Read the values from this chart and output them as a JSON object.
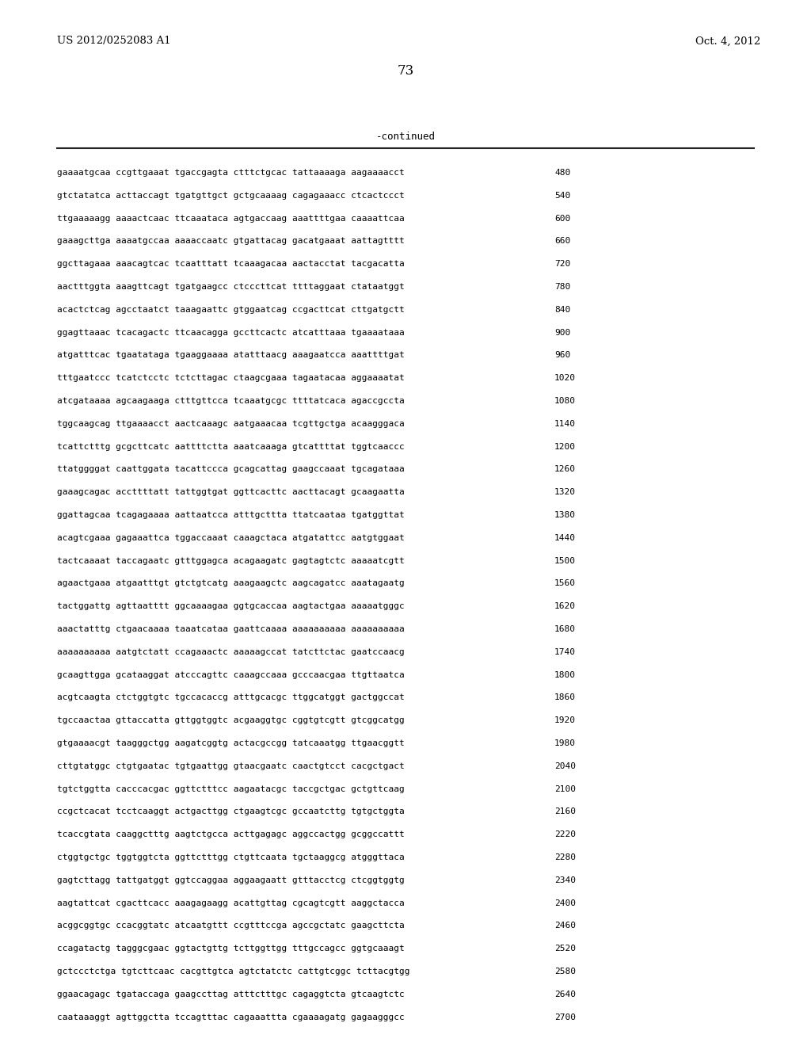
{
  "header_left": "US 2012/0252083 A1",
  "header_right": "Oct. 4, 2012",
  "page_number": "73",
  "continued_label": "-continued",
  "background_color": "#ffffff",
  "text_color": "#000000",
  "seq_font_size": 8.0,
  "header_font_size": 9.5,
  "page_num_font_size": 12,
  "continued_font_size": 9.0,
  "sequence_lines": [
    [
      "gaaaatgcaa ccgttgaaat tgaccgagta ctttctgcac tattaaaaga aagaaaacct",
      "480"
    ],
    [
      "gtctatatca acttaccagt tgatgttgct gctgcaaaag cagagaaacc ctcactccct",
      "540"
    ],
    [
      "ttgaaaaagg aaaactcaac ttcaaataca agtgaccaag aaattttgaa caaaattcaa",
      "600"
    ],
    [
      "gaaagcttga aaaatgccaa aaaaccaatc gtgattacag gacatgaaat aattagtttt",
      "660"
    ],
    [
      "ggcttagaaa aaacagtcac tcaatttatt tcaaagacaa aactacctat tacgacatta",
      "720"
    ],
    [
      "aactttggta aaagttcagt tgatgaagcc ctcccttcat ttttaggaat ctataatggt",
      "780"
    ],
    [
      "acactctcag agcctaatct taaagaattc gtggaatcag ccgacttcat cttgatgctt",
      "840"
    ],
    [
      "ggagttaaac tcacagactc ttcaacagga gccttcactc atcatttaaa tgaaaataaa",
      "900"
    ],
    [
      "atgatttcac tgaatataga tgaaggaaaa atatttaacg aaagaatcca aaattttgat",
      "960"
    ],
    [
      "tttgaatccc tcatctcctc tctcttagac ctaagcgaaa tagaatacaa aggaaaatat",
      "1020"
    ],
    [
      "atcgataaaa agcaagaaga ctttgttcca tcaaatgcgc ttttatcaca agaccgccta",
      "1080"
    ],
    [
      "tggcaagcag ttgaaaacct aactcaaagc aatgaaacaa tcgttgctga acaagggaca",
      "1140"
    ],
    [
      "tcattctttg gcgcttcatc aattttctta aaatcaaaga gtcattttat tggtcaaccc",
      "1200"
    ],
    [
      "ttatggggat caattggata tacattccca gcagcattag gaagccaaat tgcagataaa",
      "1260"
    ],
    [
      "gaaagcagac accttttatt tattggtgat ggttcacttc aacttacagt gcaagaatta",
      "1320"
    ],
    [
      "ggattagcaa tcagagaaaa aattaatcca atttgcttta ttatcaataa tgatggttat",
      "1380"
    ],
    [
      "acagtcgaaa gagaaattca tggaccaaat caaagctaca atgatattcc aatgtggaat",
      "1440"
    ],
    [
      "tactcaaaat taccagaatc gtttggagca acagaagatc gagtagtctc aaaaatcgtt",
      "1500"
    ],
    [
      "agaactgaaa atgaatttgt gtctgtcatg aaagaagctc aagcagatcc aaatagaatg",
      "1560"
    ],
    [
      "tactggattg agttaatttt ggcaaaagaa ggtgcaccaa aagtactgaa aaaaatgggc",
      "1620"
    ],
    [
      "aaactatttg ctgaacaaaa taaatcataa gaattcaaaa aaaaaaaaaa aaaaaaaaaa",
      "1680"
    ],
    [
      "aaaaaaaaaa aatgtctatt ccagaaactc aaaaagccat tatcttctac gaatccaacg",
      "1740"
    ],
    [
      "gcaagttgga gcataaggat atcccagttc caaagccaaa gcccaacgaa ttgttaatca",
      "1800"
    ],
    [
      "acgtcaagta ctctggtgtc tgccacaccg atttgcacgc ttggcatggt gactggccat",
      "1860"
    ],
    [
      "tgccaactaa gttaccatta gttggtggtc acgaaggtgc cggtgtcgtt gtcggcatgg",
      "1920"
    ],
    [
      "gtgaaaacgt taagggctgg aagatcggtg actacgccgg tatcaaatgg ttgaacggtt",
      "1980"
    ],
    [
      "cttgtatggc ctgtgaatac tgtgaattgg gtaacgaatc caactgtcct cacgctgact",
      "2040"
    ],
    [
      "tgtctggtta cacccacgac ggttctttcc aagaatacgc taccgctgac gctgttcaag",
      "2100"
    ],
    [
      "ccgctcacat tcctcaaggt actgacttgg ctgaagtcgc gccaatcttg tgtgctggta",
      "2160"
    ],
    [
      "tcaccgtata caaggctttg aagtctgcca acttgagagc aggccactgg gcggccattt",
      "2220"
    ],
    [
      "ctggtgctgc tggtggtcta ggttctttgg ctgttcaata tgctaaggcg atgggttaca",
      "2280"
    ],
    [
      "gagtcttagg tattgatggt ggtccaggaa aggaagaatt gtttacctcg ctcggtggtg",
      "2340"
    ],
    [
      "aagtattcat cgacttcacc aaagagaagg acattgttag cgcagtcgtt aaggctacca",
      "2400"
    ],
    [
      "acggcggtgc ccacggtatc atcaatgttt ccgtttccga agccgctatc gaagcttcta",
      "2460"
    ],
    [
      "ccagatactg tagggcgaac ggtactgttg tcttggttgg tttgccagcc ggtgcaaagt",
      "2520"
    ],
    [
      "gctccctctga tgtcttcaac cacgttgtca agtctatctc cattgtcggc tcttacgtgg",
      "2580"
    ],
    [
      "ggaacagagc tgataccaga gaagccttag atttctttgc cagaggtcta gtcaagtctc",
      "2640"
    ],
    [
      "caataaaggt agttggctta tccagtttac cagaaattta cgaaaagatg gagaagggcc",
      "2700"
    ]
  ]
}
